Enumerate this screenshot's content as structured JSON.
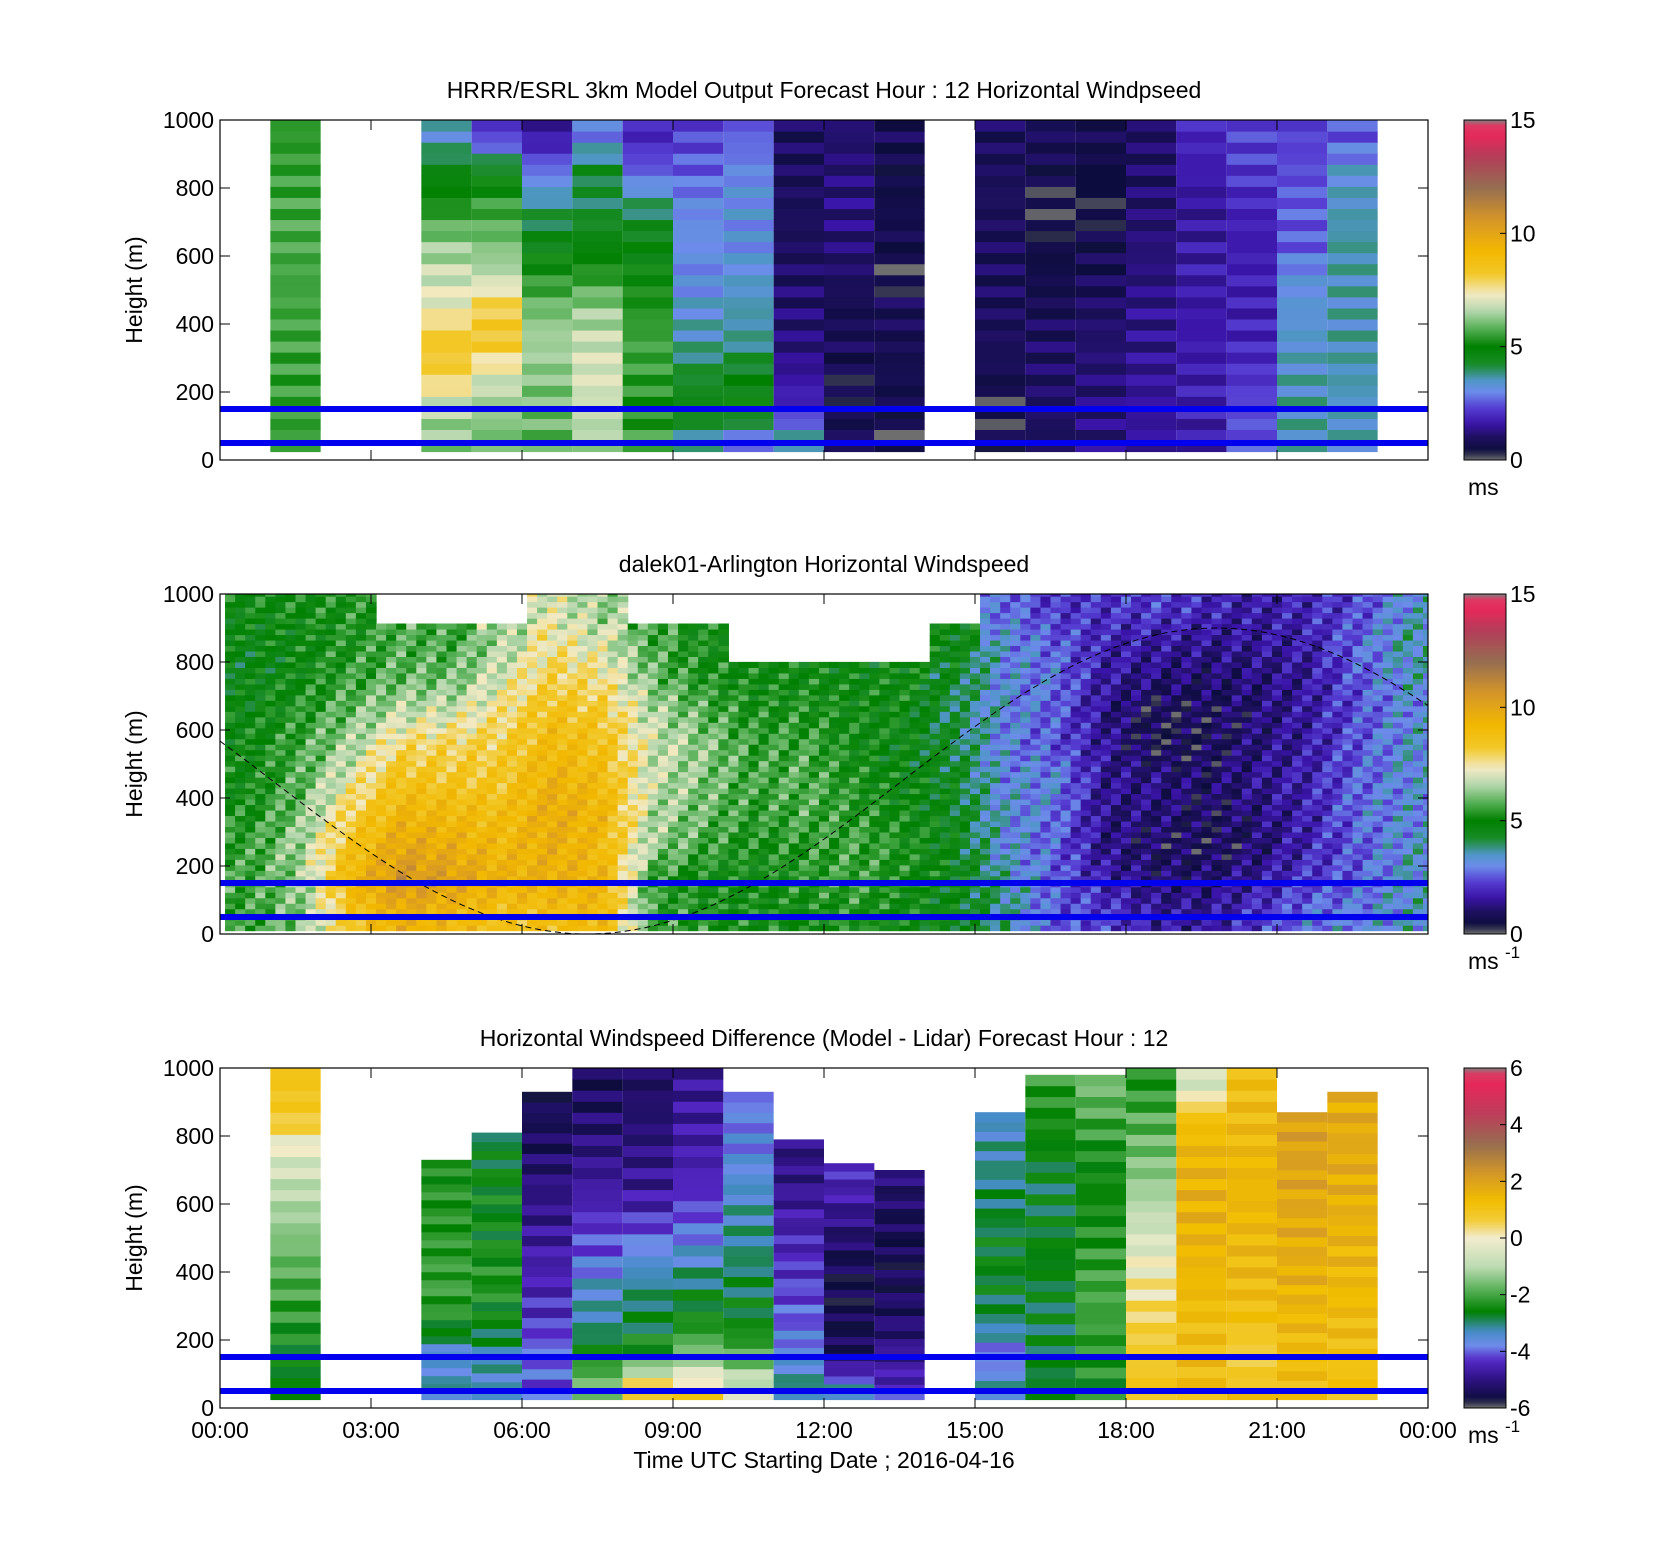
{
  "chart_data": [
    {
      "type": "heatmap",
      "title": "HRRR/ESRL 3km Model Output   Forecast Hour : 12 Horizontal Windpseed",
      "xlabel": "",
      "ylabel": "Height (m)",
      "xlim": [
        0,
        24
      ],
      "ylim": [
        0,
        1000
      ],
      "y_ticks": [
        "0",
        "200",
        "400",
        "600",
        "800",
        "1000"
      ],
      "x_tick_labels_shown": false,
      "colorbar": {
        "min": 0,
        "max": 15,
        "ticks": [
          "0",
          "5",
          "10",
          "15"
        ],
        "unit": "ms",
        "unit_sup": ""
      },
      "reference_lines_m": [
        50,
        150
      ],
      "data_columns": [
        {
          "t": 1.5,
          "top": 1000,
          "values": [
            5.5,
            5.5,
            5.5,
            5.6,
            5.6,
            5.6,
            5.7,
            5.6,
            5.5,
            5.4
          ]
        },
        {
          "t": 4.5,
          "top": 1000,
          "values": [
            6.2,
            6.6,
            8.0,
            8.3,
            7.2,
            6.8,
            6.2,
            5.2,
            4.6,
            3.4
          ]
        },
        {
          "t": 5.5,
          "top": 1000,
          "values": [
            6.0,
            6.3,
            7.0,
            8.4,
            8.1,
            6.6,
            6.0,
            5.5,
            4.6,
            2.2
          ]
        },
        {
          "t": 6.5,
          "top": 1000,
          "values": [
            5.8,
            6.0,
            6.2,
            6.5,
            6.0,
            5.2,
            4.5,
            3.8,
            2.8,
            1.6
          ]
        },
        {
          "t": 7.5,
          "top": 1000,
          "values": [
            6.4,
            6.8,
            7.0,
            6.8,
            6.3,
            5.3,
            4.6,
            4.0,
            4.4,
            2.9
          ]
        },
        {
          "t": 8.5,
          "top": 1000,
          "values": [
            5.7,
            5.2,
            5.5,
            5.6,
            5.3,
            5.0,
            4.6,
            3.9,
            2.6,
            1.9
          ]
        },
        {
          "t": 9.5,
          "top": 1000,
          "values": [
            3.6,
            4.6,
            4.2,
            3.6,
            3.3,
            3.0,
            3.1,
            3.0,
            2.6,
            2.3
          ]
        },
        {
          "t": 10.5,
          "top": 1000,
          "values": [
            2.5,
            4.9,
            4.6,
            3.7,
            3.6,
            3.3,
            3.1,
            3.2,
            3.0,
            2.6
          ]
        },
        {
          "t": 11.5,
          "top": 1000,
          "values": [
            3.9,
            2.0,
            1.5,
            1.2,
            1.1,
            1.0,
            0.9,
            0.9,
            0.9,
            0.9
          ]
        },
        {
          "t": 12.5,
          "top": 1000,
          "values": [
            1.0,
            0.6,
            0.6,
            0.9,
            0.7,
            1.0,
            1.2,
            1.3,
            1.2,
            1.1
          ]
        },
        {
          "t": 13.5,
          "top": 1000,
          "values": [
            0.2,
            0.7,
            0.7,
            0.8,
            0.9,
            0.2,
            0.8,
            0.6,
            0.6,
            0.8
          ]
        },
        {
          "t": 15.5,
          "top": 1000,
          "values": [
            0.7,
            0.2,
            0.8,
            0.9,
            0.9,
            0.9,
            0.9,
            0.9,
            0.9,
            0.9
          ]
        },
        {
          "t": 16.5,
          "top": 1000,
          "values": [
            0.9,
            1.0,
            1.0,
            1.0,
            0.8,
            0.6,
            0.5,
            0.3,
            0.7,
            0.9
          ]
        },
        {
          "t": 17.5,
          "top": 1000,
          "values": [
            1.3,
            1.2,
            1.2,
            1.1,
            1.0,
            0.8,
            0.7,
            0.3,
            0.5,
            0.8
          ]
        },
        {
          "t": 18.5,
          "top": 1000,
          "values": [
            1.5,
            1.5,
            1.5,
            1.4,
            1.4,
            1.2,
            1.2,
            1.1,
            1.0,
            1.0
          ]
        },
        {
          "t": 19.5,
          "top": 1000,
          "values": [
            1.6,
            1.8,
            1.7,
            1.7,
            1.6,
            1.7,
            1.6,
            1.5,
            1.7,
            1.9
          ]
        },
        {
          "t": 20.5,
          "top": 1000,
          "values": [
            2.5,
            2.4,
            2.1,
            1.9,
            1.8,
            1.8,
            1.7,
            1.9,
            2.2,
            2.3
          ]
        },
        {
          "t": 21.5,
          "top": 1000,
          "values": [
            3.6,
            3.6,
            3.5,
            3.4,
            3.3,
            3.1,
            2.5,
            2.6,
            2.4,
            2.3
          ]
        },
        {
          "t": 22.5,
          "top": 1000,
          "values": [
            3.5,
            3.5,
            3.6,
            3.6,
            3.5,
            3.6,
            3.7,
            3.5,
            3.3,
            2.5
          ]
        }
      ]
    },
    {
      "type": "heatmap",
      "title": "dalek01-Arlington  Horizontal Windspeed",
      "xlabel": "",
      "ylabel": "Height (m)",
      "xlim": [
        0,
        24
      ],
      "ylim": [
        0,
        1000
      ],
      "y_ticks": [
        "0",
        "200",
        "400",
        "600",
        "800",
        "1000"
      ],
      "x_tick_labels_shown": false,
      "colorbar": {
        "min": 0,
        "max": 15,
        "ticks": [
          "0",
          "5",
          "10",
          "15"
        ],
        "unit": "ms",
        "unit_sup": "-1"
      },
      "reference_lines_m": [
        50,
        150
      ],
      "grid": {
        "times_h": [
          0.5,
          1.5,
          2.5,
          3.5,
          4.5,
          5.5,
          6.5,
          7.5,
          8.5,
          9.5,
          10.5,
          11.5,
          12.5,
          13.5,
          14.5,
          15.5,
          16.5,
          17.5,
          18.5,
          19.5,
          20.5,
          21.5,
          22.5,
          23.5
        ],
        "heights_m": [
          50,
          150,
          250,
          350,
          450,
          550,
          650,
          750,
          850,
          950
        ],
        "values": [
          [
            5.5,
            5.6,
            5.5,
            5.2,
            5.0,
            5.0,
            4.8,
            4.6,
            4.7,
            5.0
          ],
          [
            6.2,
            6.3,
            6.5,
            6.1,
            5.8,
            5.6,
            5.3,
            5.0,
            4.9,
            5.1
          ],
          [
            8.4,
            9.2,
            8.6,
            8.0,
            7.2,
            6.5,
            6.0,
            5.5,
            5.3,
            5.3
          ],
          [
            9.6,
            10.6,
            9.9,
            9.2,
            8.6,
            7.8,
            6.7,
            5.9,
            5.7,
            null
          ],
          [
            9.1,
            10.2,
            9.6,
            9.0,
            8.4,
            7.9,
            6.9,
            6.0,
            5.6,
            null
          ],
          [
            8.6,
            9.4,
            9.1,
            8.8,
            8.4,
            8.1,
            7.6,
            7.0,
            6.5,
            null
          ],
          [
            8.8,
            9.5,
            9.6,
            9.7,
            9.4,
            9.0,
            8.6,
            8.0,
            7.5,
            7.0
          ],
          [
            9.1,
            9.3,
            9.0,
            9.2,
            8.9,
            8.6,
            8.2,
            7.6,
            6.9,
            6.4
          ],
          [
            5.6,
            5.4,
            6.4,
            6.6,
            6.8,
            6.9,
            6.6,
            6.0,
            5.7,
            null
          ],
          [
            5.3,
            5.0,
            5.6,
            6.0,
            6.2,
            6.3,
            5.8,
            5.2,
            5.1,
            null
          ],
          [
            5.1,
            5.0,
            5.2,
            5.4,
            5.6,
            5.5,
            5.2,
            5.0,
            null,
            null
          ],
          [
            5.0,
            5.3,
            5.4,
            5.7,
            5.8,
            5.6,
            5.3,
            5.0,
            null,
            null
          ],
          [
            5.2,
            5.6,
            5.6,
            5.4,
            5.2,
            5.0,
            5.0,
            4.9,
            null,
            null
          ],
          [
            4.9,
            5.1,
            5.2,
            5.0,
            4.8,
            4.7,
            4.9,
            5.0,
            null,
            null
          ],
          [
            4.6,
            4.7,
            4.6,
            4.5,
            4.4,
            4.2,
            4.0,
            4.4,
            4.8,
            null
          ],
          [
            3.8,
            3.7,
            3.2,
            3.3,
            3.1,
            3.0,
            3.2,
            3.1,
            3.2,
            2.8
          ],
          [
            2.5,
            2.6,
            2.6,
            2.8,
            3.1,
            2.4,
            2.6,
            2.8,
            2.6,
            2.1
          ],
          [
            2.2,
            1.7,
            1.3,
            1.3,
            1.4,
            1.5,
            1.3,
            1.6,
            1.8,
            2.1
          ],
          [
            1.6,
            1.1,
            0.9,
            1.2,
            1.3,
            0.5,
            0.6,
            1.2,
            1.6,
            2.2
          ],
          [
            1.5,
            1.1,
            0.7,
            0.8,
            0.9,
            0.7,
            0.8,
            1.0,
            1.4,
            1.9
          ],
          [
            2.1,
            1.6,
            1.0,
            1.2,
            1.4,
            1.2,
            1.1,
            1.2,
            1.5,
            1.6
          ],
          [
            2.8,
            2.2,
            1.8,
            1.7,
            1.8,
            1.6,
            1.6,
            1.5,
            1.7,
            1.9
          ],
          [
            3.0,
            2.6,
            2.5,
            2.8,
            2.6,
            2.5,
            2.4,
            2.5,
            2.7,
            2.3
          ],
          [
            3.4,
            3.4,
            3.3,
            3.1,
            3.2,
            3.3,
            3.1,
            3.4,
            3.6,
            3.3
          ]
        ]
      }
    },
    {
      "type": "heatmap",
      "title": "Horizontal Windspeed Difference (Model - Lidar) Forecast Hour : 12",
      "xlabel": "Time UTC  Starting Date ; 2016-04-16",
      "ylabel": "Height (m)",
      "xlim": [
        0,
        24
      ],
      "ylim": [
        0,
        1000
      ],
      "y_ticks": [
        "0",
        "200",
        "400",
        "600",
        "800",
        "1000"
      ],
      "x_ticks": [
        "00:00",
        "03:00",
        "06:00",
        "09:00",
        "12:00",
        "15:00",
        "18:00",
        "21:00",
        "00:00"
      ],
      "colorbar": {
        "min": -6,
        "max": 6,
        "ticks": [
          "-6",
          "-4",
          "-2",
          "0",
          "2",
          "4",
          "6"
        ],
        "unit": "ms",
        "unit_sup": "-1"
      },
      "reference_lines_m": [
        50,
        150
      ],
      "data_columns": [
        {
          "t": 1.5,
          "top": 1000,
          "values": [
            -2.6,
            -2.6,
            -2.3,
            -2.0,
            -1.7,
            -1.3,
            -0.9,
            -0.4,
            0.8,
            1.0
          ]
        },
        {
          "t": 4.5,
          "top": 730,
          "values": [
            -3.2,
            -3.6,
            -2.4,
            -2.1,
            -2.2,
            -2.3,
            -2.3,
            -2.5,
            -2.6,
            -2.6
          ]
        },
        {
          "t": 5.5,
          "top": 810,
          "values": [
            -3.4,
            -3.2,
            -2.6,
            -2.3,
            -2.4,
            -2.6,
            -2.5,
            -2.7,
            -2.9,
            -3.0
          ]
        },
        {
          "t": 6.5,
          "top": 930,
          "values": [
            -4.1,
            -3.9,
            -4.3,
            -4.5,
            -4.6,
            -4.9,
            -5.0,
            -5.3,
            -5.4,
            -5.5
          ]
        },
        {
          "t": 7.5,
          "top": 1000,
          "values": [
            -1.5,
            -2.3,
            -3.2,
            -3.4,
            -4.0,
            -4.3,
            -4.7,
            -5.0,
            -5.2,
            -5.4
          ]
        },
        {
          "t": 8.5,
          "top": 1000,
          "values": [
            1.0,
            -2.2,
            -2.8,
            -3.0,
            -3.6,
            -4.3,
            -4.8,
            -5.0,
            -5.2,
            -5.3
          ]
        },
        {
          "t": 9.5,
          "top": 1000,
          "values": [
            0.8,
            -1.4,
            -2.4,
            -2.8,
            -3.5,
            -4.0,
            -4.4,
            -4.6,
            -4.7,
            -4.8
          ]
        },
        {
          "t": 10.5,
          "top": 930,
          "values": [
            -0.5,
            -1.8,
            -2.6,
            -2.8,
            -3.0,
            -3.2,
            -3.4,
            -3.7,
            -3.8,
            -3.9
          ]
        },
        {
          "t": 11.5,
          "top": 790,
          "values": [
            -3.0,
            -3.6,
            -4.0,
            -4.2,
            -4.4,
            -4.6,
            -4.9,
            -5.0,
            -5.1,
            -5.2
          ]
        },
        {
          "t": 12.5,
          "top": 720,
          "values": [
            -3.2,
            -5.4,
            -5.5,
            -5.6,
            -5.4,
            -5.0,
            -4.5,
            -4.4,
            -4.5,
            -4.6
          ]
        },
        {
          "t": 13.5,
          "top": 700,
          "values": [
            -4.3,
            -4.9,
            -5.2,
            -5.4,
            -5.5,
            -5.4,
            -5.2,
            -4.9,
            -4.8,
            -4.8
          ]
        },
        {
          "t": 15.5,
          "top": 870,
          "values": [
            -3.2,
            -4.0,
            -3.0,
            -2.7,
            -2.6,
            -2.8,
            -3.0,
            -3.2,
            -3.4,
            -3.4
          ]
        },
        {
          "t": 16.5,
          "top": 980,
          "values": [
            -2.7,
            -2.8,
            -2.8,
            -2.7,
            -2.6,
            -2.7,
            -2.8,
            -2.6,
            -2.4,
            -2.2
          ]
        },
        {
          "t": 17.5,
          "top": 980,
          "values": [
            -2.4,
            -2.3,
            -2.1,
            -2.0,
            -2.2,
            -2.4,
            -2.5,
            -2.4,
            -2.0,
            -1.6
          ]
        },
        {
          "t": 18.5,
          "top": 1000,
          "values": [
            1.0,
            0.8,
            0.6,
            0.2,
            -0.3,
            -0.8,
            -1.3,
            -1.6,
            -1.9,
            -2.3
          ]
        },
        {
          "t": 19.5,
          "top": 1000,
          "values": [
            1.2,
            1.3,
            1.2,
            1.4,
            1.5,
            1.6,
            1.6,
            1.5,
            1.2,
            -0.6
          ]
        },
        {
          "t": 20.5,
          "top": 1000,
          "values": [
            1.2,
            0.5,
            1.1,
            1.3,
            1.4,
            1.4,
            1.5,
            1.4,
            1.3,
            1.2
          ]
        },
        {
          "t": 21.5,
          "top": 870,
          "values": [
            1.2,
            1.3,
            1.4,
            1.6,
            1.7,
            1.8,
            1.9,
            2.0,
            2.0,
            1.8
          ]
        },
        {
          "t": 22.5,
          "top": 930,
          "values": [
            1.1,
            1.2,
            1.3,
            1.4,
            1.5,
            1.6,
            1.7,
            1.8,
            1.8,
            1.6
          ]
        }
      ]
    }
  ]
}
